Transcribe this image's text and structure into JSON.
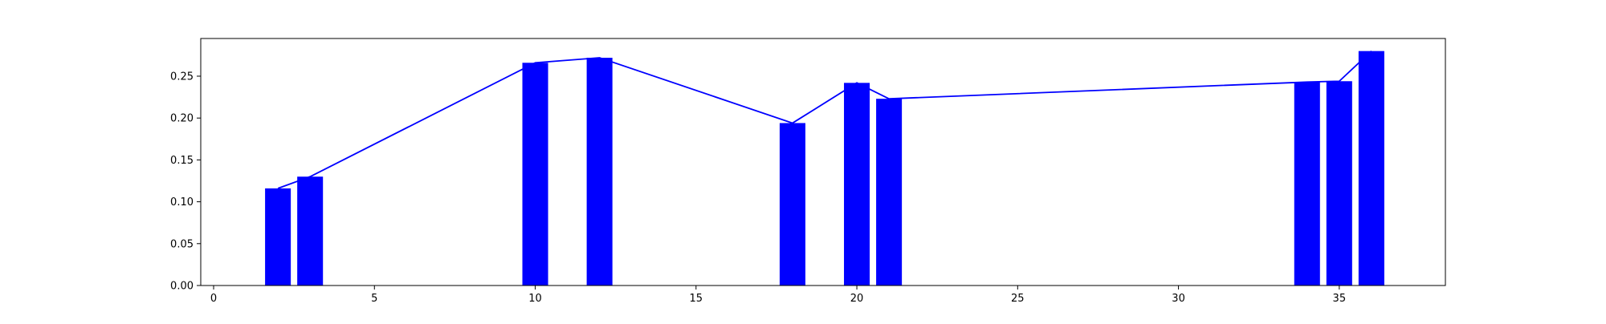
{
  "chart_data": {
    "type": "bar",
    "title": "",
    "xlabel": "",
    "ylabel": "",
    "xlim": [
      -0.4,
      38.3
    ],
    "ylim": [
      0,
      0.295
    ],
    "grid": false,
    "x_ticks": [
      0,
      5,
      10,
      15,
      20,
      25,
      30,
      35
    ],
    "y_ticks": [
      0.0,
      0.05,
      0.1,
      0.15,
      0.2,
      0.25
    ],
    "x_tick_labels": [
      "0",
      "5",
      "10",
      "15",
      "20",
      "25",
      "30",
      "35"
    ],
    "y_tick_labels": [
      "0.00",
      "0.05",
      "0.10",
      "0.15",
      "0.20",
      "0.25"
    ],
    "bar_width": 0.8,
    "x": [
      2,
      3,
      10,
      12,
      18,
      20,
      21,
      34,
      35,
      36
    ],
    "values": [
      0.116,
      0.13,
      0.266,
      0.272,
      0.194,
      0.242,
      0.223,
      0.243,
      0.244,
      0.28
    ],
    "line_overlay": true,
    "colors": {
      "bar": "#0000ff",
      "line": "#0000ff",
      "axes": "#000000",
      "background": "#ffffff"
    }
  }
}
